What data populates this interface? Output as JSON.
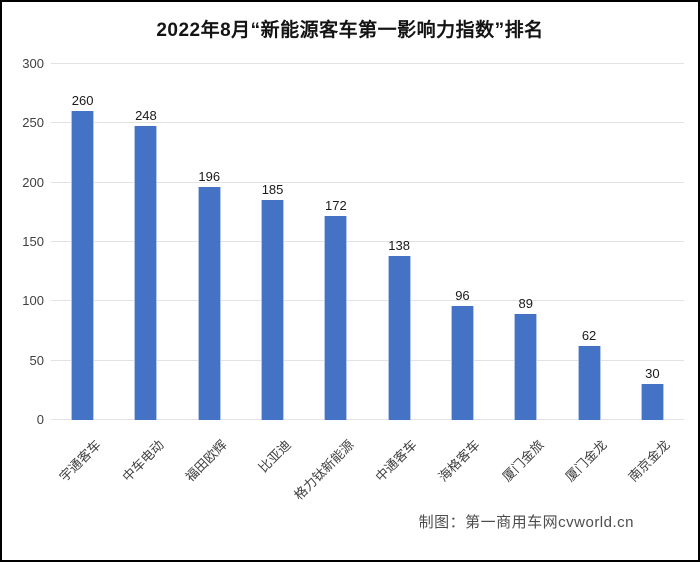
{
  "title": "2022年8月“新能源客车第一影响力指数”排名",
  "caption": "制图：第一商用车网cvworld.cn",
  "colors": {
    "bar": "#4472C4",
    "bar_edge": "#B4C7E7",
    "gridline": "#E2E2E2",
    "axis_text": "#404040",
    "value_text": "#1A1A1A",
    "title_text": "#141414",
    "caption_text": "#4D4D4D",
    "background": "#FFFFFF",
    "border": "#000000"
  },
  "chart_data": {
    "type": "bar",
    "title": "2022年8月“新能源客车第一影响力指数”排名",
    "categories": [
      "宇通客车",
      "中车电动",
      "福田欧辉",
      "比亚迪",
      "格力钛新能源",
      "中通客车",
      "海格客车",
      "厦门金旅",
      "厦门金龙",
      "南京金龙"
    ],
    "values": [
      260,
      248,
      196,
      185,
      172,
      138,
      96,
      89,
      62,
      30
    ],
    "xlabel": "",
    "ylabel": "",
    "ylim": [
      0,
      300
    ],
    "yticks": [
      0,
      50,
      100,
      150,
      200,
      250,
      300
    ],
    "grid": true,
    "legend": false,
    "value_labels": true,
    "category_label_rotation_deg": -45
  }
}
